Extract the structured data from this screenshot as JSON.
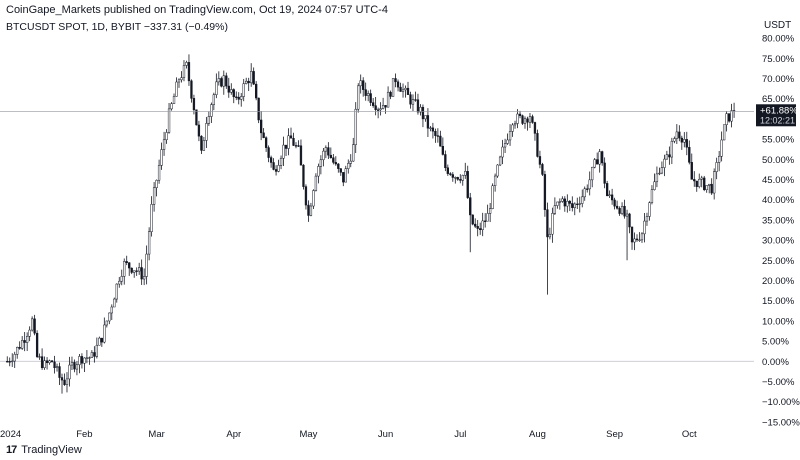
{
  "header": {
    "publisher": "CoinGape_Markets published on TradingView.com, Oct 19, 2024 07:57 UTC-4",
    "symbol": "BTCUSDT SPOT, 1D, BYBIT  −337.31 (−0.49%)",
    "currency": "USDT"
  },
  "footer": {
    "brand": "TradingView",
    "logo_icon": "tradingview-logo-icon"
  },
  "colors": {
    "candle": "#131722",
    "up_fill": "#ffffff",
    "grid_line": "#c7c9d1",
    "badge_bg": "#131722",
    "badge_text": "#ffffff"
  },
  "chart_data": {
    "type": "candlestick",
    "title": "BTCUSDT SPOT, 1D, BYBIT",
    "x_labels": [
      "2024",
      "Feb",
      "Mar",
      "Apr",
      "May",
      "Jun",
      "Jul",
      "Aug",
      "Sep",
      "Oct"
    ],
    "x_label_dates": [
      "2024-01-01",
      "2024-02-01",
      "2024-03-01",
      "2024-04-01",
      "2024-05-01",
      "2024-06-01",
      "2024-07-01",
      "2024-08-01",
      "2024-09-01",
      "2024-10-01"
    ],
    "y_labels": [
      "80.00%",
      "75.00%",
      "70.00%",
      "65.00%",
      "60.00%",
      "55.00%",
      "50.00%",
      "45.00%",
      "40.00%",
      "35.00%",
      "30.00%",
      "25.00%",
      "20.00%",
      "15.00%",
      "10.00%",
      "5.00%",
      "0.00%",
      "−5.00%",
      "−10.00%",
      "−15.00%"
    ],
    "y_scale": "percent",
    "ylim": [
      -17,
      82
    ],
    "last_value_label": "+61.88%",
    "countdown_label": "12:02:21",
    "last_value": 61.88,
    "date_range": [
      "2024-01-01",
      "2024-10-19"
    ],
    "close_path": [
      [
        "2024-01-01",
        0
      ],
      [
        "2024-01-04",
        2
      ],
      [
        "2024-01-08",
        6
      ],
      [
        "2024-01-11",
        10
      ],
      [
        "2024-01-13",
        1
      ],
      [
        "2024-01-16",
        -1
      ],
      [
        "2024-01-19",
        0
      ],
      [
        "2024-01-22",
        -4
      ],
      [
        "2024-01-24",
        -5
      ],
      [
        "2024-01-27",
        -1
      ],
      [
        "2024-01-31",
        1
      ],
      [
        "2024-02-04",
        1
      ],
      [
        "2024-02-08",
        6
      ],
      [
        "2024-02-11",
        12
      ],
      [
        "2024-02-15",
        21
      ],
      [
        "2024-02-17",
        24
      ],
      [
        "2024-02-21",
        23
      ],
      [
        "2024-02-25",
        21
      ],
      [
        "2024-02-28",
        38
      ],
      [
        "2024-03-01",
        45
      ],
      [
        "2024-03-04",
        55
      ],
      [
        "2024-03-06",
        61
      ],
      [
        "2024-03-10",
        70
      ],
      [
        "2024-03-13",
        73
      ],
      [
        "2024-03-16",
        63
      ],
      [
        "2024-03-19",
        51
      ],
      [
        "2024-03-21",
        60
      ],
      [
        "2024-03-25",
        68
      ],
      [
        "2024-03-28",
        70
      ],
      [
        "2024-04-02",
        64
      ],
      [
        "2024-04-05",
        68
      ],
      [
        "2024-04-08",
        71
      ],
      [
        "2024-04-12",
        57
      ],
      [
        "2024-04-14",
        53
      ],
      [
        "2024-04-17",
        47
      ],
      [
        "2024-04-21",
        53
      ],
      [
        "2024-04-24",
        55
      ],
      [
        "2024-04-27",
        52
      ],
      [
        "2024-05-01",
        36
      ],
      [
        "2024-05-04",
        47
      ],
      [
        "2024-05-08",
        53
      ],
      [
        "2024-05-12",
        48
      ],
      [
        "2024-05-15",
        45
      ],
      [
        "2024-05-19",
        53
      ],
      [
        "2024-05-21",
        69
      ],
      [
        "2024-05-25",
        66
      ],
      [
        "2024-05-29",
        63
      ],
      [
        "2024-06-01",
        64
      ],
      [
        "2024-06-05",
        70
      ],
      [
        "2024-06-08",
        67
      ],
      [
        "2024-06-12",
        64
      ],
      [
        "2024-06-15",
        62
      ],
      [
        "2024-06-19",
        57
      ],
      [
        "2024-06-22",
        55
      ],
      [
        "2024-06-25",
        48
      ],
      [
        "2024-06-29",
        46
      ],
      [
        "2024-07-03",
        46
      ],
      [
        "2024-07-05",
        35
      ],
      [
        "2024-07-08",
        32
      ],
      [
        "2024-07-12",
        36
      ],
      [
        "2024-07-15",
        45
      ],
      [
        "2024-07-18",
        52
      ],
      [
        "2024-07-22",
        60
      ],
      [
        "2024-07-26",
        60
      ],
      [
        "2024-07-29",
        61
      ],
      [
        "2024-08-01",
        52
      ],
      [
        "2024-08-03",
        45
      ],
      [
        "2024-08-05",
        30
      ],
      [
        "2024-08-08",
        38
      ],
      [
        "2024-08-11",
        40
      ],
      [
        "2024-08-15",
        38
      ],
      [
        "2024-08-19",
        41
      ],
      [
        "2024-08-22",
        45
      ],
      [
        "2024-08-26",
        52
      ],
      [
        "2024-08-29",
        41
      ],
      [
        "2024-09-03",
        38
      ],
      [
        "2024-09-06",
        35
      ],
      [
        "2024-09-08",
        29
      ],
      [
        "2024-09-12",
        32
      ],
      [
        "2024-09-15",
        40
      ],
      [
        "2024-09-19",
        48
      ],
      [
        "2024-09-22",
        50
      ],
      [
        "2024-09-26",
        57
      ],
      [
        "2024-09-29",
        55
      ],
      [
        "2024-10-02",
        45
      ],
      [
        "2024-10-06",
        44
      ],
      [
        "2024-10-10",
        43
      ],
      [
        "2024-10-12",
        48
      ],
      [
        "2024-10-14",
        55
      ],
      [
        "2024-10-16",
        60
      ],
      [
        "2024-10-19",
        61.88
      ]
    ]
  }
}
